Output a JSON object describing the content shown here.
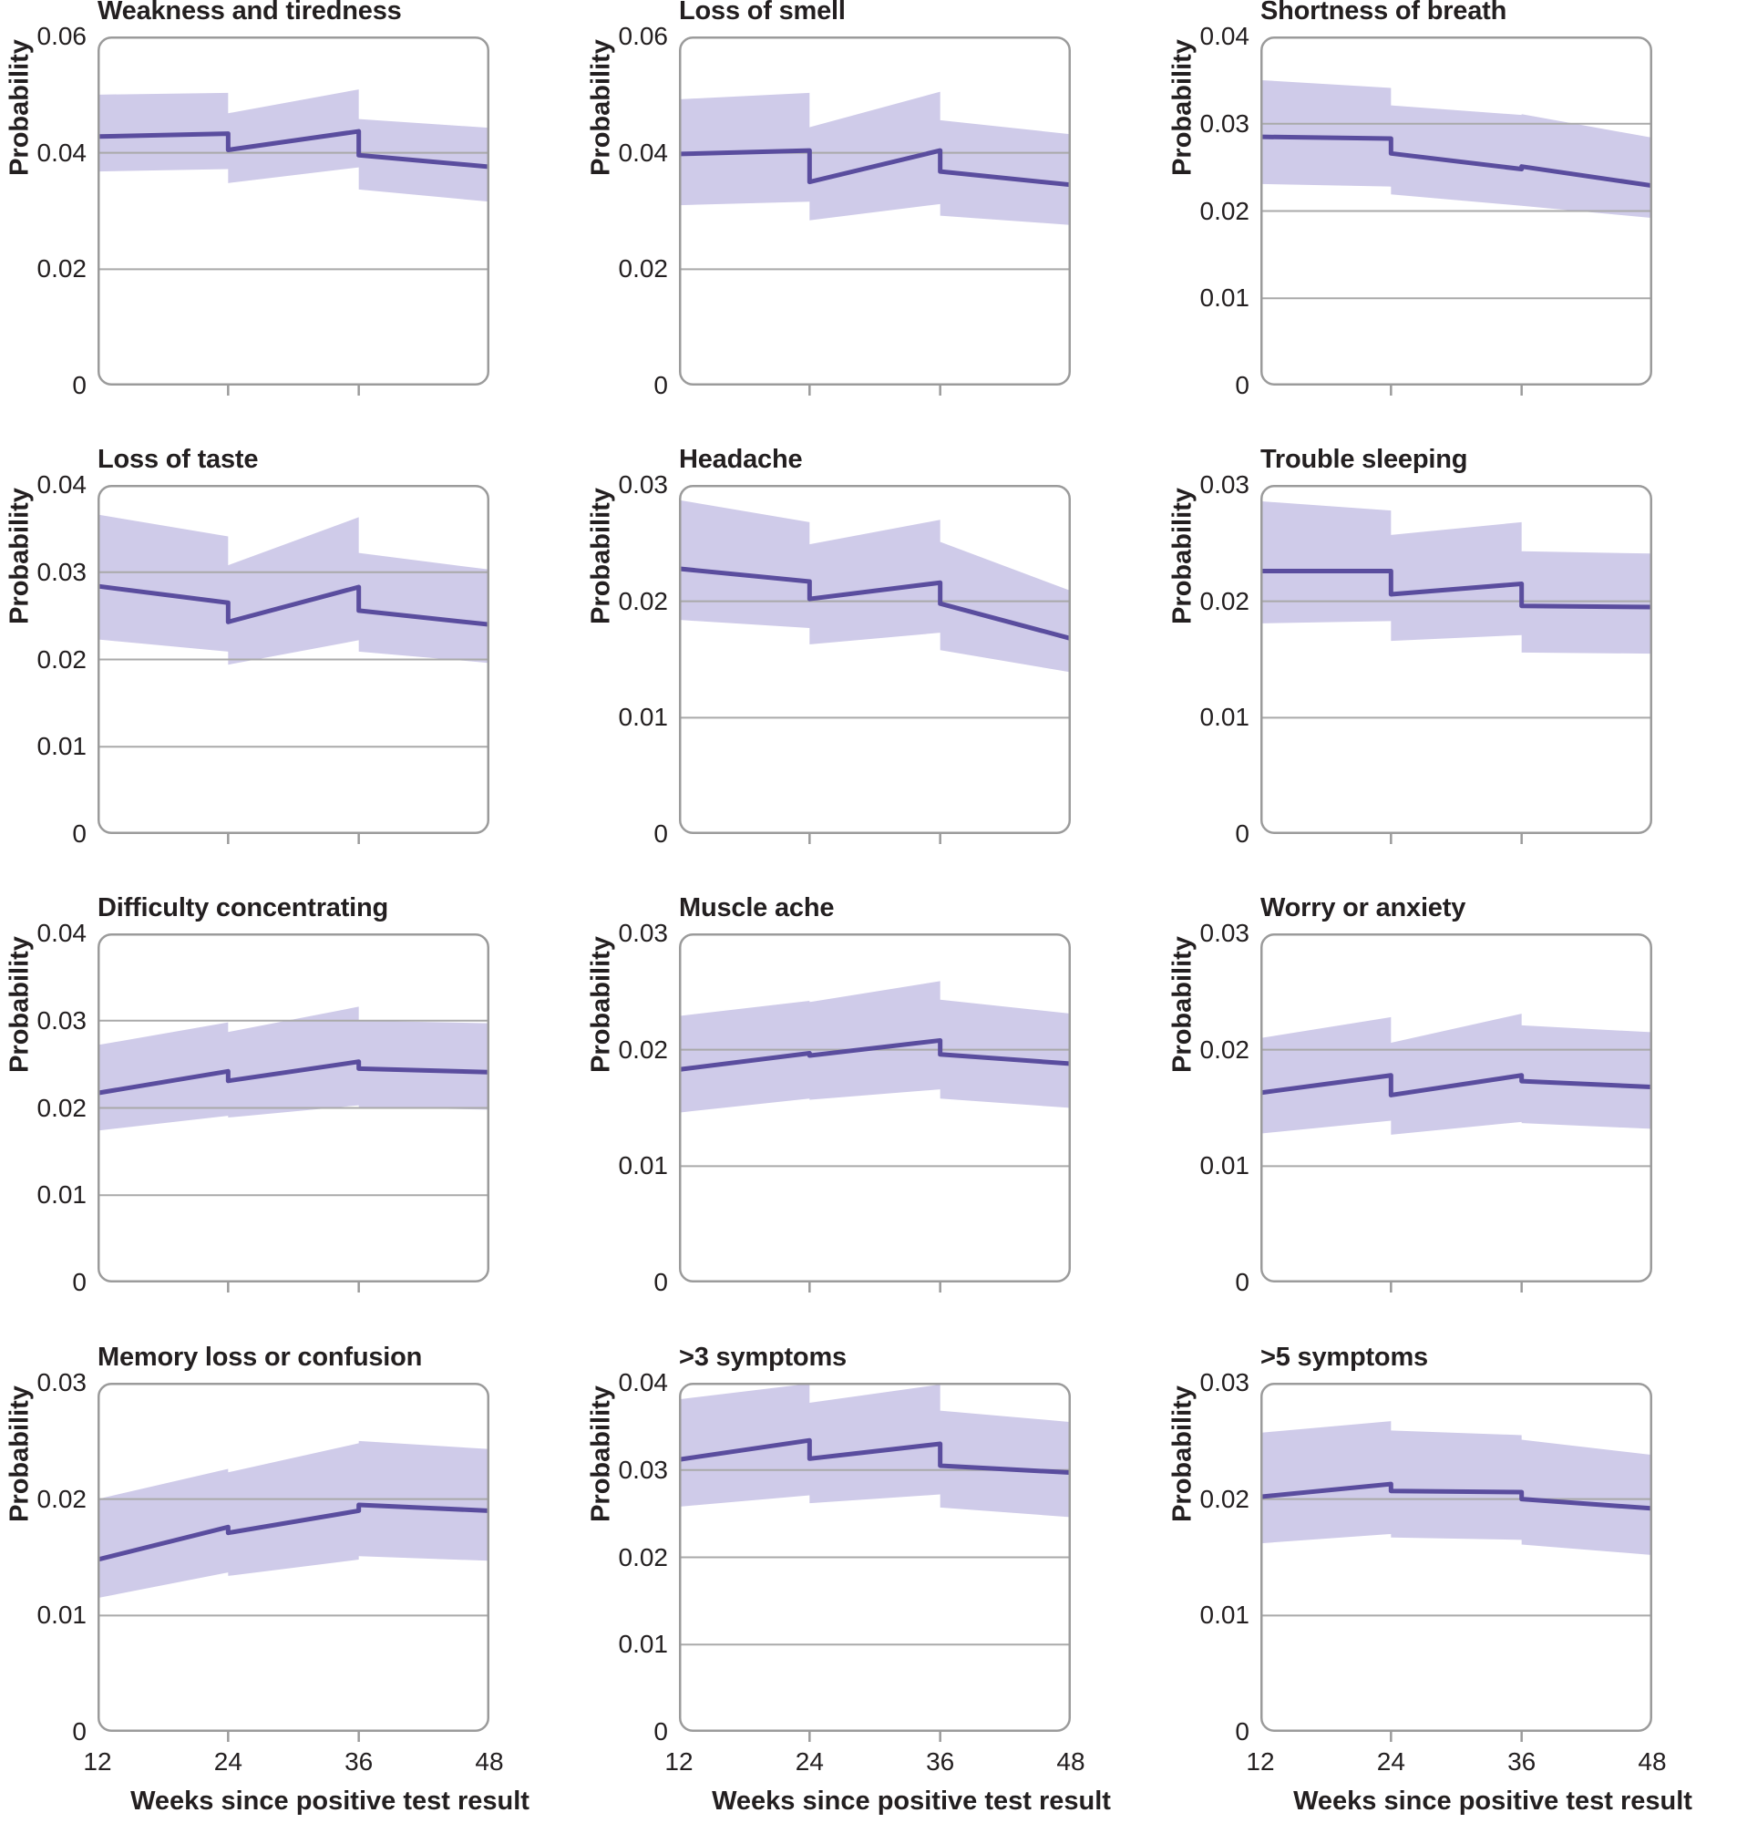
{
  "figure": {
    "ylabel": "Probability",
    "xlabel": "Weeks since positive test result",
    "xtick_labels": [
      "12",
      "24",
      "36",
      "48"
    ]
  },
  "colors": {
    "line": "#5a4d9e",
    "band": "#cfcbe9",
    "grid": "#a9a9a9",
    "border": "#9b9b9b",
    "text": "#231f20"
  },
  "chart_data": [
    {
      "type": "line",
      "title": "Weakness and tiredness",
      "xlabel": "Weeks since positive test result",
      "ylabel": "Probability",
      "x_range": [
        12,
        48
      ],
      "ylim": [
        0,
        0.06
      ],
      "yticks": [
        0,
        0.02,
        0.04,
        0.06
      ],
      "ytick_labels": [
        "0",
        "0.02",
        "0.04",
        "0.06"
      ],
      "segments": [
        {
          "x": [
            12,
            24
          ],
          "mean": [
            0.0428,
            0.0433
          ],
          "lower": [
            0.0368,
            0.0372
          ],
          "upper": [
            0.05,
            0.0503
          ]
        },
        {
          "x": [
            24,
            36
          ],
          "mean": [
            0.0405,
            0.0437
          ],
          "lower": [
            0.0348,
            0.0375
          ],
          "upper": [
            0.0468,
            0.0509
          ]
        },
        {
          "x": [
            36,
            48
          ],
          "mean": [
            0.0396,
            0.0376
          ],
          "lower": [
            0.0337,
            0.0316
          ],
          "upper": [
            0.0458,
            0.0443
          ]
        }
      ]
    },
    {
      "type": "line",
      "title": "Loss of smell",
      "xlabel": "Weeks since positive test result",
      "ylabel": "Probability",
      "x_range": [
        12,
        48
      ],
      "ylim": [
        0,
        0.06
      ],
      "yticks": [
        0,
        0.02,
        0.04,
        0.06
      ],
      "ytick_labels": [
        "0",
        "0.02",
        "0.04",
        "0.06"
      ],
      "segments": [
        {
          "x": [
            12,
            24
          ],
          "mean": [
            0.0398,
            0.0404
          ],
          "lower": [
            0.031,
            0.0316
          ],
          "upper": [
            0.0492,
            0.0503
          ]
        },
        {
          "x": [
            24,
            36
          ],
          "mean": [
            0.035,
            0.0404
          ],
          "lower": [
            0.0284,
            0.0312
          ],
          "upper": [
            0.0444,
            0.0505
          ]
        },
        {
          "x": [
            36,
            48
          ],
          "mean": [
            0.0368,
            0.0345
          ],
          "lower": [
            0.0292,
            0.0276
          ],
          "upper": [
            0.0456,
            0.0432
          ]
        }
      ]
    },
    {
      "type": "line",
      "title": "Shortness of breath",
      "xlabel": "Weeks since positive test result",
      "ylabel": "Probability",
      "x_range": [
        12,
        48
      ],
      "ylim": [
        0,
        0.04
      ],
      "yticks": [
        0,
        0.01,
        0.02,
        0.03,
        0.04
      ],
      "ytick_labels": [
        "0",
        "0.01",
        "0.02",
        "0.03",
        "0.04"
      ],
      "segments": [
        {
          "x": [
            12,
            24
          ],
          "mean": [
            0.0285,
            0.0283
          ],
          "lower": [
            0.0231,
            0.0228
          ],
          "upper": [
            0.035,
            0.0341
          ]
        },
        {
          "x": [
            24,
            36
          ],
          "mean": [
            0.0266,
            0.0248
          ],
          "lower": [
            0.0219,
            0.0206
          ],
          "upper": [
            0.0321,
            0.031
          ]
        },
        {
          "x": [
            36,
            48
          ],
          "mean": [
            0.0251,
            0.0229
          ],
          "lower": [
            0.0206,
            0.0192
          ],
          "upper": [
            0.0311,
            0.0284
          ]
        }
      ]
    },
    {
      "type": "line",
      "title": "Loss of taste",
      "xlabel": "Weeks since positive test result",
      "ylabel": "Probability",
      "x_range": [
        12,
        48
      ],
      "ylim": [
        0,
        0.04
      ],
      "yticks": [
        0,
        0.01,
        0.02,
        0.03,
        0.04
      ],
      "ytick_labels": [
        "0",
        "0.01",
        "0.02",
        "0.03",
        "0.04"
      ],
      "segments": [
        {
          "x": [
            12,
            24
          ],
          "mean": [
            0.0284,
            0.0265
          ],
          "lower": [
            0.0223,
            0.0209
          ],
          "upper": [
            0.0366,
            0.0341
          ]
        },
        {
          "x": [
            24,
            36
          ],
          "mean": [
            0.0243,
            0.0283
          ],
          "lower": [
            0.0194,
            0.0222
          ],
          "upper": [
            0.0308,
            0.0363
          ]
        },
        {
          "x": [
            36,
            48
          ],
          "mean": [
            0.0256,
            0.024
          ],
          "lower": [
            0.0209,
            0.0196
          ],
          "upper": [
            0.0322,
            0.0303
          ]
        }
      ]
    },
    {
      "type": "line",
      "title": "Headache",
      "xlabel": "Weeks since positive test result",
      "ylabel": "Probability",
      "x_range": [
        12,
        48
      ],
      "ylim": [
        0,
        0.03
      ],
      "yticks": [
        0,
        0.01,
        0.02,
        0.03
      ],
      "ytick_labels": [
        "0",
        "0.01",
        "0.02",
        "0.03"
      ],
      "segments": [
        {
          "x": [
            12,
            24
          ],
          "mean": [
            0.0228,
            0.0217
          ],
          "lower": [
            0.0184,
            0.0177
          ],
          "upper": [
            0.0287,
            0.0268
          ]
        },
        {
          "x": [
            24,
            36
          ],
          "mean": [
            0.0202,
            0.0216
          ],
          "lower": [
            0.0163,
            0.0173
          ],
          "upper": [
            0.0249,
            0.027
          ]
        },
        {
          "x": [
            36,
            48
          ],
          "mean": [
            0.0198,
            0.0168
          ],
          "lower": [
            0.0158,
            0.0139
          ],
          "upper": [
            0.0251,
            0.0209
          ]
        }
      ]
    },
    {
      "type": "line",
      "title": "Trouble sleeping",
      "xlabel": "Weeks since positive test result",
      "ylabel": "Probability",
      "x_range": [
        12,
        48
      ],
      "ylim": [
        0,
        0.03
      ],
      "yticks": [
        0,
        0.01,
        0.02,
        0.03
      ],
      "ytick_labels": [
        "0",
        "0.01",
        "0.02",
        "0.03"
      ],
      "segments": [
        {
          "x": [
            12,
            24
          ],
          "mean": [
            0.0226,
            0.0226
          ],
          "lower": [
            0.0181,
            0.0183
          ],
          "upper": [
            0.0286,
            0.0278
          ]
        },
        {
          "x": [
            24,
            36
          ],
          "mean": [
            0.0206,
            0.0215
          ],
          "lower": [
            0.0166,
            0.0171
          ],
          "upper": [
            0.0257,
            0.0268
          ]
        },
        {
          "x": [
            36,
            48
          ],
          "mean": [
            0.0196,
            0.0195
          ],
          "lower": [
            0.0156,
            0.0155
          ],
          "upper": [
            0.0243,
            0.0241
          ]
        }
      ]
    },
    {
      "type": "line",
      "title": "Difficulty concentrating",
      "xlabel": "Weeks since positive test result",
      "ylabel": "Probability",
      "x_range": [
        12,
        48
      ],
      "ylim": [
        0,
        0.04
      ],
      "yticks": [
        0,
        0.01,
        0.02,
        0.03,
        0.04
      ],
      "ytick_labels": [
        "0",
        "0.01",
        "0.02",
        "0.03",
        "0.04"
      ],
      "segments": [
        {
          "x": [
            12,
            24
          ],
          "mean": [
            0.0217,
            0.0242
          ],
          "lower": [
            0.0174,
            0.0191
          ],
          "upper": [
            0.0272,
            0.0298
          ]
        },
        {
          "x": [
            24,
            36
          ],
          "mean": [
            0.0231,
            0.0253
          ],
          "lower": [
            0.0189,
            0.0203
          ],
          "upper": [
            0.0287,
            0.0316
          ]
        },
        {
          "x": [
            36,
            48
          ],
          "mean": [
            0.0245,
            0.0241
          ],
          "lower": [
            0.0201,
            0.0198
          ],
          "upper": [
            0.03,
            0.0297
          ]
        }
      ]
    },
    {
      "type": "line",
      "title": "Muscle ache",
      "xlabel": "Weeks since positive test result",
      "ylabel": "Probability",
      "x_range": [
        12,
        48
      ],
      "ylim": [
        0,
        0.03
      ],
      "yticks": [
        0,
        0.01,
        0.02,
        0.03
      ],
      "ytick_labels": [
        "0",
        "0.01",
        "0.02",
        "0.03"
      ],
      "segments": [
        {
          "x": [
            12,
            24
          ],
          "mean": [
            0.0183,
            0.0197
          ],
          "lower": [
            0.0146,
            0.0158
          ],
          "upper": [
            0.0229,
            0.0242
          ]
        },
        {
          "x": [
            24,
            36
          ],
          "mean": [
            0.0195,
            0.0208
          ],
          "lower": [
            0.0157,
            0.0166
          ],
          "upper": [
            0.0241,
            0.0259
          ]
        },
        {
          "x": [
            36,
            48
          ],
          "mean": [
            0.0196,
            0.0188
          ],
          "lower": [
            0.0158,
            0.015
          ],
          "upper": [
            0.0243,
            0.0231
          ]
        }
      ]
    },
    {
      "type": "line",
      "title": "Worry or anxiety",
      "xlabel": "Weeks since positive test result",
      "ylabel": "Probability",
      "x_range": [
        12,
        48
      ],
      "ylim": [
        0,
        0.03
      ],
      "yticks": [
        0,
        0.01,
        0.02,
        0.03
      ],
      "ytick_labels": [
        "0",
        "0.01",
        "0.02",
        "0.03"
      ],
      "segments": [
        {
          "x": [
            12,
            24
          ],
          "mean": [
            0.0163,
            0.0178
          ],
          "lower": [
            0.0128,
            0.0139
          ],
          "upper": [
            0.021,
            0.0228
          ]
        },
        {
          "x": [
            24,
            36
          ],
          "mean": [
            0.0161,
            0.0178
          ],
          "lower": [
            0.0127,
            0.0138
          ],
          "upper": [
            0.0206,
            0.0231
          ]
        },
        {
          "x": [
            36,
            48
          ],
          "mean": [
            0.0173,
            0.0168
          ],
          "lower": [
            0.0137,
            0.0132
          ],
          "upper": [
            0.0221,
            0.0215
          ]
        }
      ]
    },
    {
      "type": "line",
      "title": "Memory loss or confusion",
      "xlabel": "Weeks since positive test result",
      "ylabel": "Probability",
      "x_range": [
        12,
        48
      ],
      "ylim": [
        0,
        0.03
      ],
      "yticks": [
        0,
        0.01,
        0.02,
        0.03
      ],
      "ytick_labels": [
        "0",
        "0.01",
        "0.02",
        "0.03"
      ],
      "segments": [
        {
          "x": [
            12,
            24
          ],
          "mean": [
            0.0148,
            0.0176
          ],
          "lower": [
            0.0115,
            0.0137
          ],
          "upper": [
            0.02,
            0.0226
          ]
        },
        {
          "x": [
            24,
            36
          ],
          "mean": [
            0.0171,
            0.019
          ],
          "lower": [
            0.0134,
            0.0148
          ],
          "upper": [
            0.0223,
            0.0248
          ]
        },
        {
          "x": [
            36,
            48
          ],
          "mean": [
            0.0195,
            0.019
          ],
          "lower": [
            0.0151,
            0.0147
          ],
          "upper": [
            0.025,
            0.0243
          ]
        }
      ]
    },
    {
      "type": "line",
      "title": ">3 symptoms",
      "xlabel": "Weeks since positive test result",
      "ylabel": "Probability",
      "x_range": [
        12,
        48
      ],
      "ylim": [
        0,
        0.04
      ],
      "yticks": [
        0,
        0.01,
        0.02,
        0.03,
        0.04
      ],
      "ytick_labels": [
        "0",
        "0.01",
        "0.02",
        "0.03",
        "0.04"
      ],
      "segments": [
        {
          "x": [
            12,
            24
          ],
          "mean": [
            0.0312,
            0.0334
          ],
          "lower": [
            0.0258,
            0.0271
          ],
          "upper": [
            0.0381,
            0.0399
          ]
        },
        {
          "x": [
            24,
            36
          ],
          "mean": [
            0.0313,
            0.033
          ],
          "lower": [
            0.0262,
            0.0272
          ],
          "upper": [
            0.0377,
            0.0398
          ]
        },
        {
          "x": [
            36,
            48
          ],
          "mean": [
            0.0305,
            0.0297
          ],
          "lower": [
            0.0257,
            0.0246
          ],
          "upper": [
            0.0368,
            0.0355
          ]
        }
      ]
    },
    {
      "type": "line",
      "title": ">5 symptoms",
      "xlabel": "Weeks since positive test result",
      "ylabel": "Probability",
      "x_range": [
        12,
        48
      ],
      "ylim": [
        0,
        0.03
      ],
      "yticks": [
        0,
        0.01,
        0.02,
        0.03
      ],
      "ytick_labels": [
        "0",
        "0.01",
        "0.02",
        "0.03"
      ],
      "segments": [
        {
          "x": [
            12,
            24
          ],
          "mean": [
            0.0202,
            0.0213
          ],
          "lower": [
            0.0162,
            0.017
          ],
          "upper": [
            0.0257,
            0.0267
          ]
        },
        {
          "x": [
            24,
            36
          ],
          "mean": [
            0.0207,
            0.0206
          ],
          "lower": [
            0.0167,
            0.0165
          ],
          "upper": [
            0.0259,
            0.0255
          ]
        },
        {
          "x": [
            36,
            48
          ],
          "mean": [
            0.02,
            0.0192
          ],
          "lower": [
            0.0161,
            0.0152
          ],
          "upper": [
            0.0251,
            0.0238
          ]
        }
      ]
    }
  ]
}
